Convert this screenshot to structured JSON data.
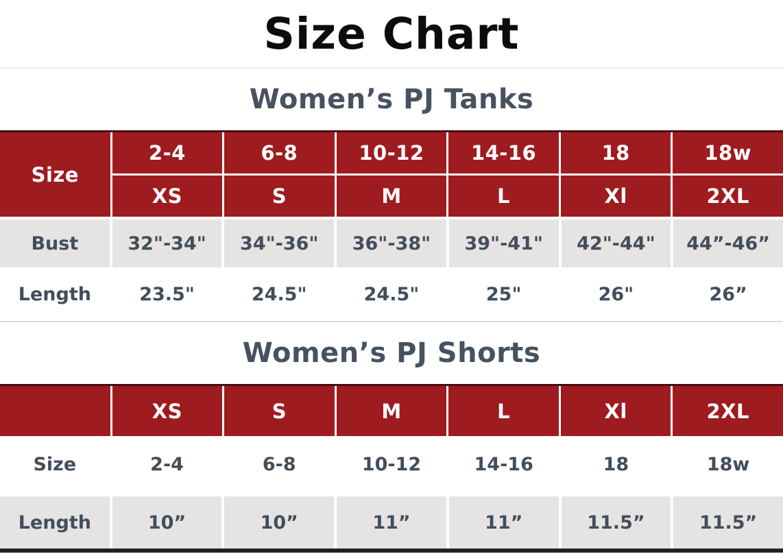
{
  "page": {
    "title": "Size Chart"
  },
  "colors": {
    "header_red": "#9e1b20",
    "row_gray": "#e6e4e2",
    "text_slate": "#424e5b",
    "heading_slate": "#46525f"
  },
  "tanks": {
    "heading": "Women’s PJ Tanks",
    "corner_label": "Size",
    "size_numeric": [
      "2-4",
      "6-8",
      "10-12",
      "14-16",
      "18",
      "18w"
    ],
    "size_letter": [
      "XS",
      "S",
      "M",
      "L",
      "Xl",
      "2XL"
    ],
    "rows": [
      {
        "label": "Bust",
        "values": [
          "32\"-34\"",
          "34\"-36\"",
          "36\"-38\"",
          "39\"-41\"",
          "42\"-44\"",
          "44”-46”"
        ]
      },
      {
        "label": "Length",
        "values": [
          "23.5\"",
          "24.5\"",
          "24.5\"",
          "25\"",
          "26\"",
          "26”"
        ]
      }
    ]
  },
  "shorts": {
    "heading": "Women’s PJ Shorts",
    "corner_label": "",
    "header": [
      "XS",
      "S",
      "M",
      "L",
      "Xl",
      "2XL"
    ],
    "rows": [
      {
        "label": "Size",
        "values": [
          "2-4",
          "6-8",
          "10-12",
          "14-16",
          "18",
          "18w"
        ]
      },
      {
        "label": "Length",
        "values": [
          "10”",
          "10”",
          "11”",
          "11”",
          "11.5”",
          "11.5”"
        ]
      }
    ]
  }
}
